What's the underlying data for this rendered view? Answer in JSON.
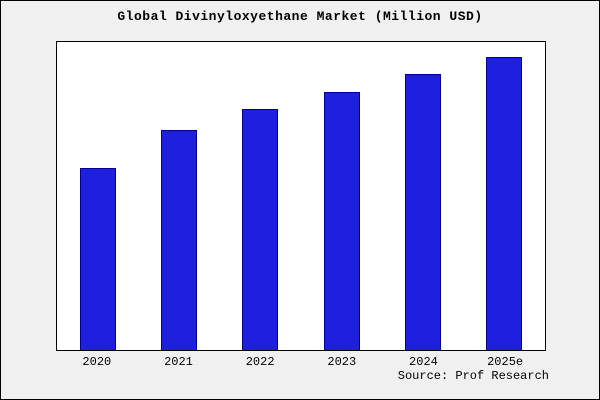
{
  "chart_data": {
    "type": "bar",
    "title": "Global Divinyloxyethane Market (Million USD)",
    "categories": [
      "2020",
      "2021",
      "2022",
      "2023",
      "2024",
      "2025e"
    ],
    "values": [
      62,
      75,
      82,
      88,
      94,
      100
    ],
    "xlabel": "",
    "ylabel": "",
    "ylim": [
      0,
      105
    ],
    "grid": false,
    "legend_position": "none",
    "bar_color": "#1f1fe0",
    "bar_border_color": "#00008b"
  },
  "source": "Source: Prof Research",
  "colors": {
    "page_background": "#f0f0f0",
    "plot_background": "#ffffff",
    "frame_border": "#000000",
    "title_text": "#000000"
  }
}
